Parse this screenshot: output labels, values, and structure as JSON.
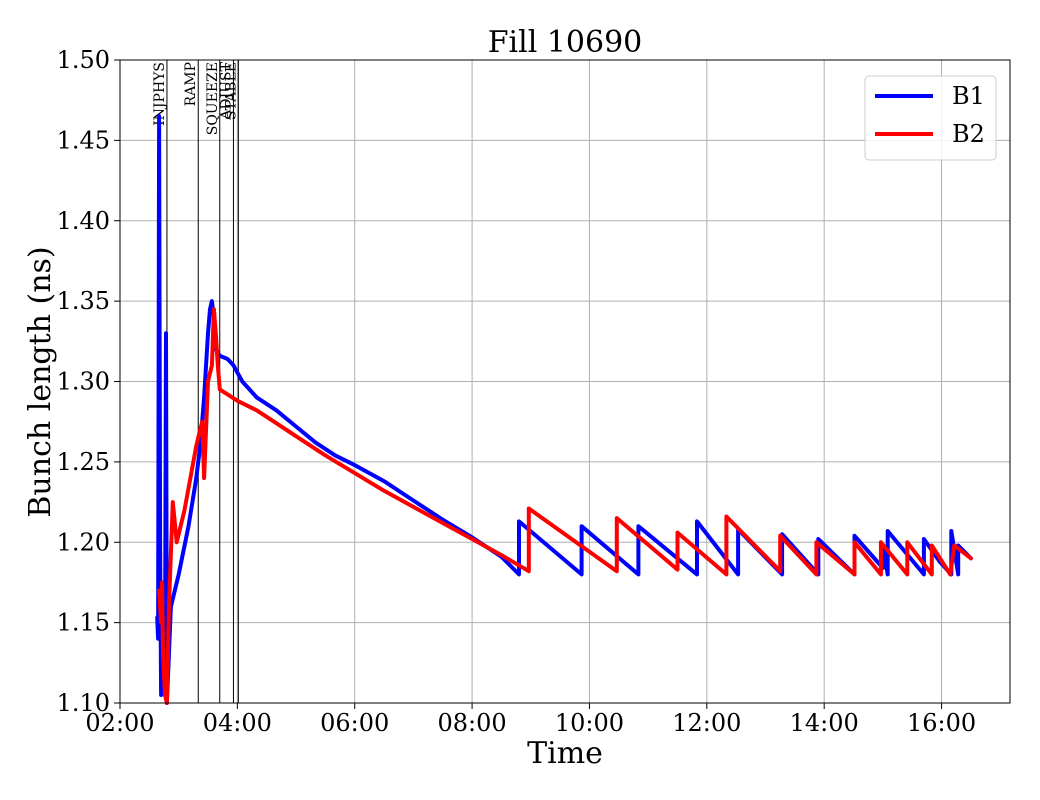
{
  "chart_data": {
    "type": "line",
    "title": "Fill 10690",
    "xlabel": "Time",
    "ylabel": "Bunch length (ns)",
    "xlim": [
      "02:00",
      "17:10"
    ],
    "ylim": [
      1.1,
      1.5
    ],
    "x_ticks": [
      "02:00",
      "04:00",
      "06:00",
      "08:00",
      "10:00",
      "12:00",
      "14:00",
      "16:00"
    ],
    "y_ticks": [
      "1.10",
      "1.15",
      "1.20",
      "1.25",
      "1.30",
      "1.35",
      "1.40",
      "1.45",
      "1.50"
    ],
    "grid": true,
    "legend_position": "top-right",
    "phases": [
      {
        "label": "INJPHYS",
        "time": "02:48"
      },
      {
        "label": "RAMP",
        "time": "03:20"
      },
      {
        "label": "SQUEEZE",
        "time": "03:42"
      },
      {
        "label": "ADJUST",
        "time": "03:56"
      },
      {
        "label": "STABLE",
        "time": "04:01"
      }
    ],
    "series": [
      {
        "name": "B1",
        "color": "#0000ff",
        "points": [
          [
            "02:38",
            1.153
          ],
          [
            "02:39",
            1.14
          ],
          [
            "02:40",
            1.465
          ],
          [
            "02:41",
            1.2
          ],
          [
            "02:42",
            1.105
          ],
          [
            "02:44",
            1.17
          ],
          [
            "02:46",
            1.13
          ],
          [
            "02:47",
            1.33
          ],
          [
            "02:48",
            1.1
          ],
          [
            "02:52",
            1.16
          ],
          [
            "03:00",
            1.18
          ],
          [
            "03:10",
            1.21
          ],
          [
            "03:18",
            1.24
          ],
          [
            "03:22",
            1.26
          ],
          [
            "03:26",
            1.29
          ],
          [
            "03:30",
            1.33
          ],
          [
            "03:32",
            1.345
          ],
          [
            "03:34",
            1.35
          ],
          [
            "03:36",
            1.34
          ],
          [
            "03:38",
            1.32
          ],
          [
            "03:42",
            1.316
          ],
          [
            "03:50",
            1.314
          ],
          [
            "03:56",
            1.31
          ],
          [
            "04:05",
            1.3
          ],
          [
            "04:20",
            1.29
          ],
          [
            "04:40",
            1.282
          ],
          [
            "05:00",
            1.272
          ],
          [
            "05:20",
            1.262
          ],
          [
            "05:40",
            1.254
          ],
          [
            "06:00",
            1.248
          ],
          [
            "06:30",
            1.238
          ],
          [
            "07:00",
            1.226
          ],
          [
            "07:30",
            1.214
          ],
          [
            "08:00",
            1.203
          ],
          [
            "08:30",
            1.191
          ],
          [
            "08:48",
            1.18
          ],
          [
            "08:48",
            1.213
          ],
          [
            "09:52",
            1.18
          ],
          [
            "09:52",
            1.21
          ],
          [
            "10:50",
            1.18
          ],
          [
            "10:50",
            1.21
          ],
          [
            "11:50",
            1.18
          ],
          [
            "11:50",
            1.213
          ],
          [
            "12:32",
            1.18
          ],
          [
            "12:32",
            1.208
          ],
          [
            "13:17",
            1.18
          ],
          [
            "13:17",
            1.205
          ],
          [
            "13:54",
            1.18
          ],
          [
            "13:54",
            1.202
          ],
          [
            "14:31",
            1.18
          ],
          [
            "14:31",
            1.204
          ],
          [
            "15:00",
            1.184
          ],
          [
            "15:00",
            1.198
          ],
          [
            "15:05",
            1.18
          ],
          [
            "15:05",
            1.207
          ],
          [
            "15:42",
            1.18
          ],
          [
            "15:42",
            1.202
          ],
          [
            "15:58",
            1.188
          ],
          [
            "16:10",
            1.18
          ],
          [
            "16:10",
            1.207
          ],
          [
            "16:17",
            1.18
          ],
          [
            "16:17",
            1.198
          ],
          [
            "16:30",
            1.19
          ]
        ]
      },
      {
        "name": "B2",
        "color": "#ff0000",
        "points": [
          [
            "02:40",
            1.17
          ],
          [
            "02:42",
            1.15
          ],
          [
            "02:43",
            1.175
          ],
          [
            "02:44",
            1.13
          ],
          [
            "02:46",
            1.105
          ],
          [
            "02:48",
            1.1
          ],
          [
            "02:50",
            1.16
          ],
          [
            "02:54",
            1.225
          ],
          [
            "02:58",
            1.2
          ],
          [
            "03:06",
            1.22
          ],
          [
            "03:12",
            1.24
          ],
          [
            "03:18",
            1.26
          ],
          [
            "03:20",
            1.265
          ],
          [
            "03:24",
            1.275
          ],
          [
            "03:26",
            1.24
          ],
          [
            "03:30",
            1.3
          ],
          [
            "03:34",
            1.31
          ],
          [
            "03:36",
            1.345
          ],
          [
            "03:38",
            1.33
          ],
          [
            "03:40",
            1.31
          ],
          [
            "03:42",
            1.295
          ],
          [
            "03:50",
            1.292
          ],
          [
            "04:00",
            1.288
          ],
          [
            "04:20",
            1.282
          ],
          [
            "04:40",
            1.274
          ],
          [
            "05:00",
            1.266
          ],
          [
            "05:30",
            1.254
          ],
          [
            "06:00",
            1.243
          ],
          [
            "06:30",
            1.232
          ],
          [
            "07:00",
            1.222
          ],
          [
            "07:30",
            1.212
          ],
          [
            "08:00",
            1.202
          ],
          [
            "08:30",
            1.192
          ],
          [
            "08:58",
            1.182
          ],
          [
            "08:58",
            1.221
          ],
          [
            "10:28",
            1.182
          ],
          [
            "10:28",
            1.215
          ],
          [
            "11:30",
            1.183
          ],
          [
            "11:30",
            1.206
          ],
          [
            "12:20",
            1.18
          ],
          [
            "12:20",
            1.216
          ],
          [
            "13:15",
            1.182
          ],
          [
            "13:15",
            1.204
          ],
          [
            "13:52",
            1.18
          ],
          [
            "13:52",
            1.2
          ],
          [
            "14:31",
            1.18
          ],
          [
            "14:31",
            1.2
          ],
          [
            "14:58",
            1.18
          ],
          [
            "14:58",
            1.2
          ],
          [
            "15:25",
            1.18
          ],
          [
            "15:25",
            1.2
          ],
          [
            "15:50",
            1.18
          ],
          [
            "15:50",
            1.198
          ],
          [
            "16:09",
            1.18
          ],
          [
            "16:13",
            1.198
          ],
          [
            "16:30",
            1.19
          ]
        ]
      }
    ]
  }
}
